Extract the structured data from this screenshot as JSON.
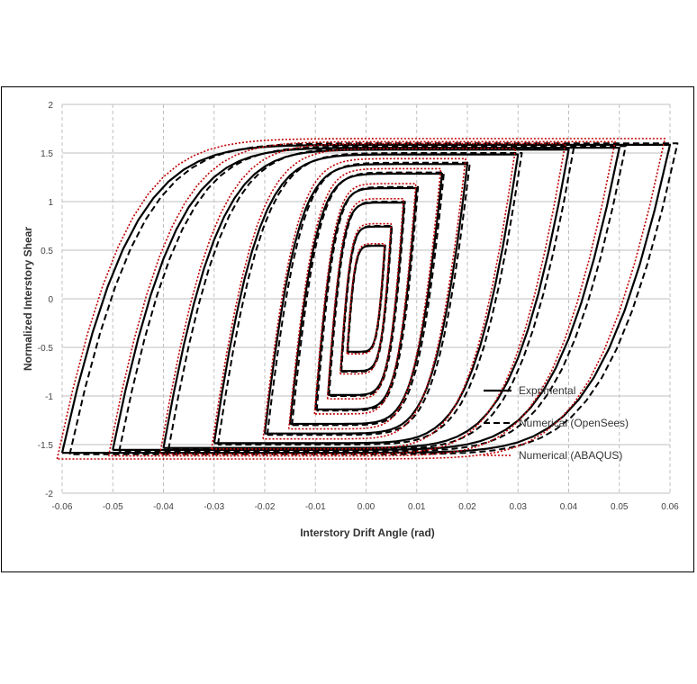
{
  "chart_data": {
    "type": "line",
    "title": "",
    "xlabel": "Interstory Drift Angle (rad)",
    "ylabel": "Normalized Interstory Shear",
    "xlim": [
      -0.06,
      0.06
    ],
    "ylim": [
      -2,
      2
    ],
    "xticks": [
      -0.06,
      -0.05,
      -0.04,
      -0.03,
      -0.02,
      -0.01,
      0.0,
      0.01,
      0.02,
      0.03,
      0.04,
      0.05,
      0.06
    ],
    "xtick_labels": [
      "-0.06",
      "-0.05",
      "-0.04",
      "-0.03",
      "-0.02",
      "-0.01",
      "0.00",
      "0.01",
      "0.02",
      "0.03",
      "0.04",
      "0.05",
      "0.06"
    ],
    "yticks": [
      -2,
      -1.5,
      -1,
      -0.5,
      0,
      0.5,
      1,
      1.5,
      2
    ],
    "ytick_labels": [
      "-2",
      "-1.5",
      "-1",
      "-0.5",
      "0",
      "0.5",
      "1",
      "1.5",
      "2"
    ],
    "grid": {
      "vertical": "dashed",
      "horizontal": "solid"
    },
    "legend_position": "bottom-right",
    "cycles": [
      {
        "amp": 0.0037,
        "peak": 0.55
      },
      {
        "amp": 0.005,
        "peak": 0.75
      },
      {
        "amp": 0.0075,
        "peak": 1.0
      },
      {
        "amp": 0.01,
        "peak": 1.15
      },
      {
        "amp": 0.015,
        "peak": 1.3
      },
      {
        "amp": 0.02,
        "peak": 1.4
      },
      {
        "amp": 0.03,
        "peak": 1.5
      },
      {
        "amp": 0.04,
        "peak": 1.55
      },
      {
        "amp": 0.05,
        "peak": 1.57
      },
      {
        "amp": 0.06,
        "peak": 1.6
      }
    ],
    "series": [
      {
        "name": "Exprimental",
        "color": "#000000",
        "style": "solid",
        "width": 2.2,
        "peak_scale": 0.99,
        "shift": 0.0
      },
      {
        "name": "Numerical (OpenSees)",
        "color": "#000000",
        "style": "dashed",
        "width": 2.0,
        "peak_scale": 1.0,
        "shift": 0.0015
      },
      {
        "name": "Numerical (ABAQUS)",
        "color": "#c00000",
        "style": "dotted",
        "width": 1.6,
        "peak_scale": 1.03,
        "shift": -0.001
      }
    ],
    "colors": {
      "grid": "#bfbfbf",
      "frame": "#000000",
      "abaqus": "#c00000"
    }
  }
}
